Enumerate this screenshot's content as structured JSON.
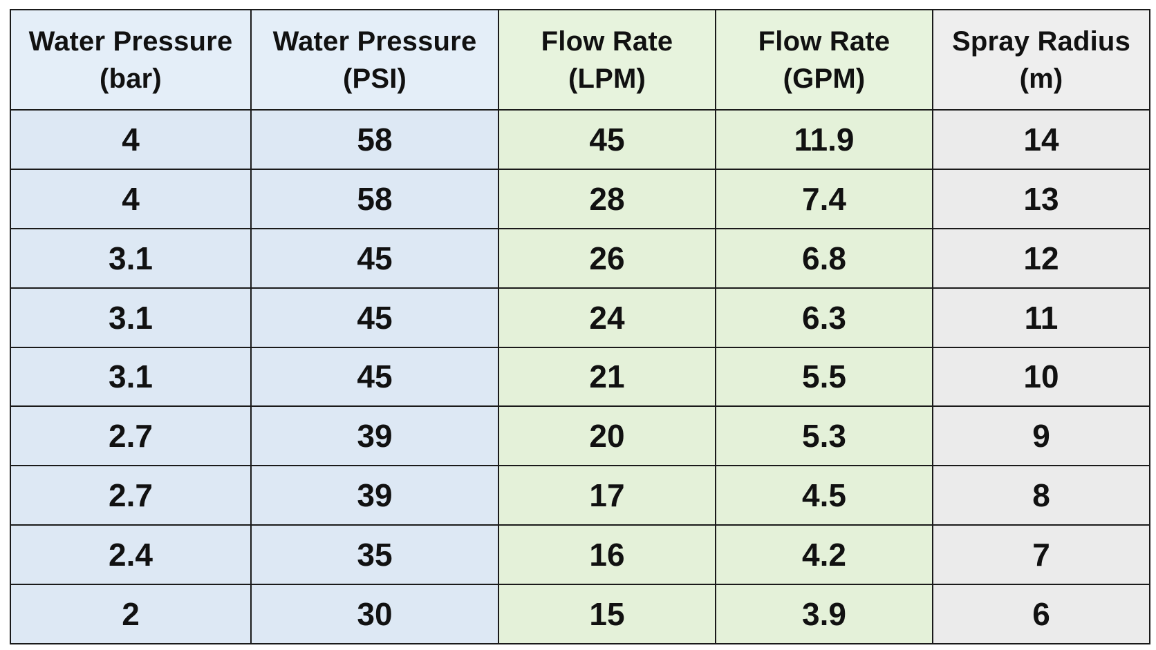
{
  "table": {
    "headers": [
      {
        "line1": "Water Pressure",
        "line2": "(bar)"
      },
      {
        "line1": "Water Pressure",
        "line2": "(PSI)"
      },
      {
        "line1": "Flow Rate",
        "line2": "(LPM)"
      },
      {
        "line1": "Flow Rate",
        "line2": "(GPM)"
      },
      {
        "line1": "Spray Radius",
        "line2": "(m)"
      }
    ],
    "rows": [
      [
        "4",
        "58",
        "45",
        "11.9",
        "14"
      ],
      [
        "4",
        "58",
        "28",
        "7.4",
        "13"
      ],
      [
        "3.1",
        "45",
        "26",
        "6.8",
        "12"
      ],
      [
        "3.1",
        "45",
        "24",
        "6.3",
        "11"
      ],
      [
        "3.1",
        "45",
        "21",
        "5.5",
        "10"
      ],
      [
        "2.7",
        "39",
        "20",
        "5.3",
        "9"
      ],
      [
        "2.7",
        "39",
        "17",
        "4.5",
        "8"
      ],
      [
        "2.4",
        "35",
        "16",
        "4.2",
        "7"
      ],
      [
        "2",
        "30",
        "15",
        "3.9",
        "6"
      ]
    ],
    "colors": {
      "pressure_header": "#e4eef8",
      "pressure_cell": "#dde8f4",
      "flow_header": "#e7f3dd",
      "flow_cell": "#e4f1d9",
      "radius_header": "#eeeeee",
      "radius_cell": "#ebebeb",
      "border": "#1a1a1a",
      "text": "#111111"
    }
  }
}
